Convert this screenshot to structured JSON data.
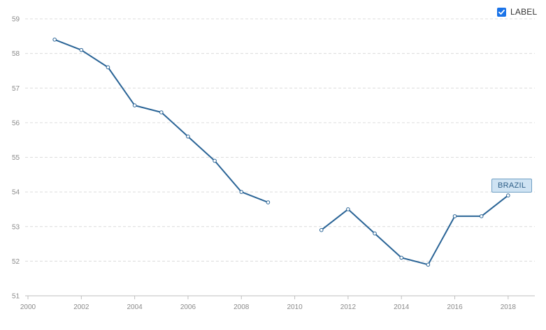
{
  "legend": {
    "label": "LABEL",
    "checked": true,
    "checkbox_color": "#1a73e8"
  },
  "series_tag": "BRAZIL",
  "chart_data": {
    "type": "line",
    "title": "",
    "xlabel": "",
    "ylabel": "",
    "xlim": [
      2000,
      2019
    ],
    "ylim": [
      51,
      59
    ],
    "x_ticks": [
      2000,
      2002,
      2004,
      2006,
      2008,
      2010,
      2012,
      2014,
      2016,
      2018
    ],
    "y_ticks": [
      51,
      52,
      53,
      54,
      55,
      56,
      57,
      58,
      59
    ],
    "grid": "horizontal dashed",
    "series": [
      {
        "name": "BRAZIL",
        "color": "#2a6496",
        "points": [
          [
            2001,
            58.4
          ],
          [
            2002,
            58.1
          ],
          [
            2003,
            57.6
          ],
          [
            2004,
            56.5
          ],
          [
            2005,
            56.3
          ],
          [
            2006,
            55.6
          ],
          [
            2007,
            54.9
          ],
          [
            2008,
            54.0
          ],
          [
            2009,
            53.7
          ],
          [
            2010,
            null
          ],
          [
            2011,
            52.9
          ],
          [
            2012,
            53.5
          ],
          [
            2013,
            52.8
          ],
          [
            2014,
            52.1
          ],
          [
            2015,
            51.9
          ],
          [
            2016,
            53.3
          ],
          [
            2017,
            53.3
          ],
          [
            2018,
            53.9
          ]
        ]
      }
    ]
  }
}
